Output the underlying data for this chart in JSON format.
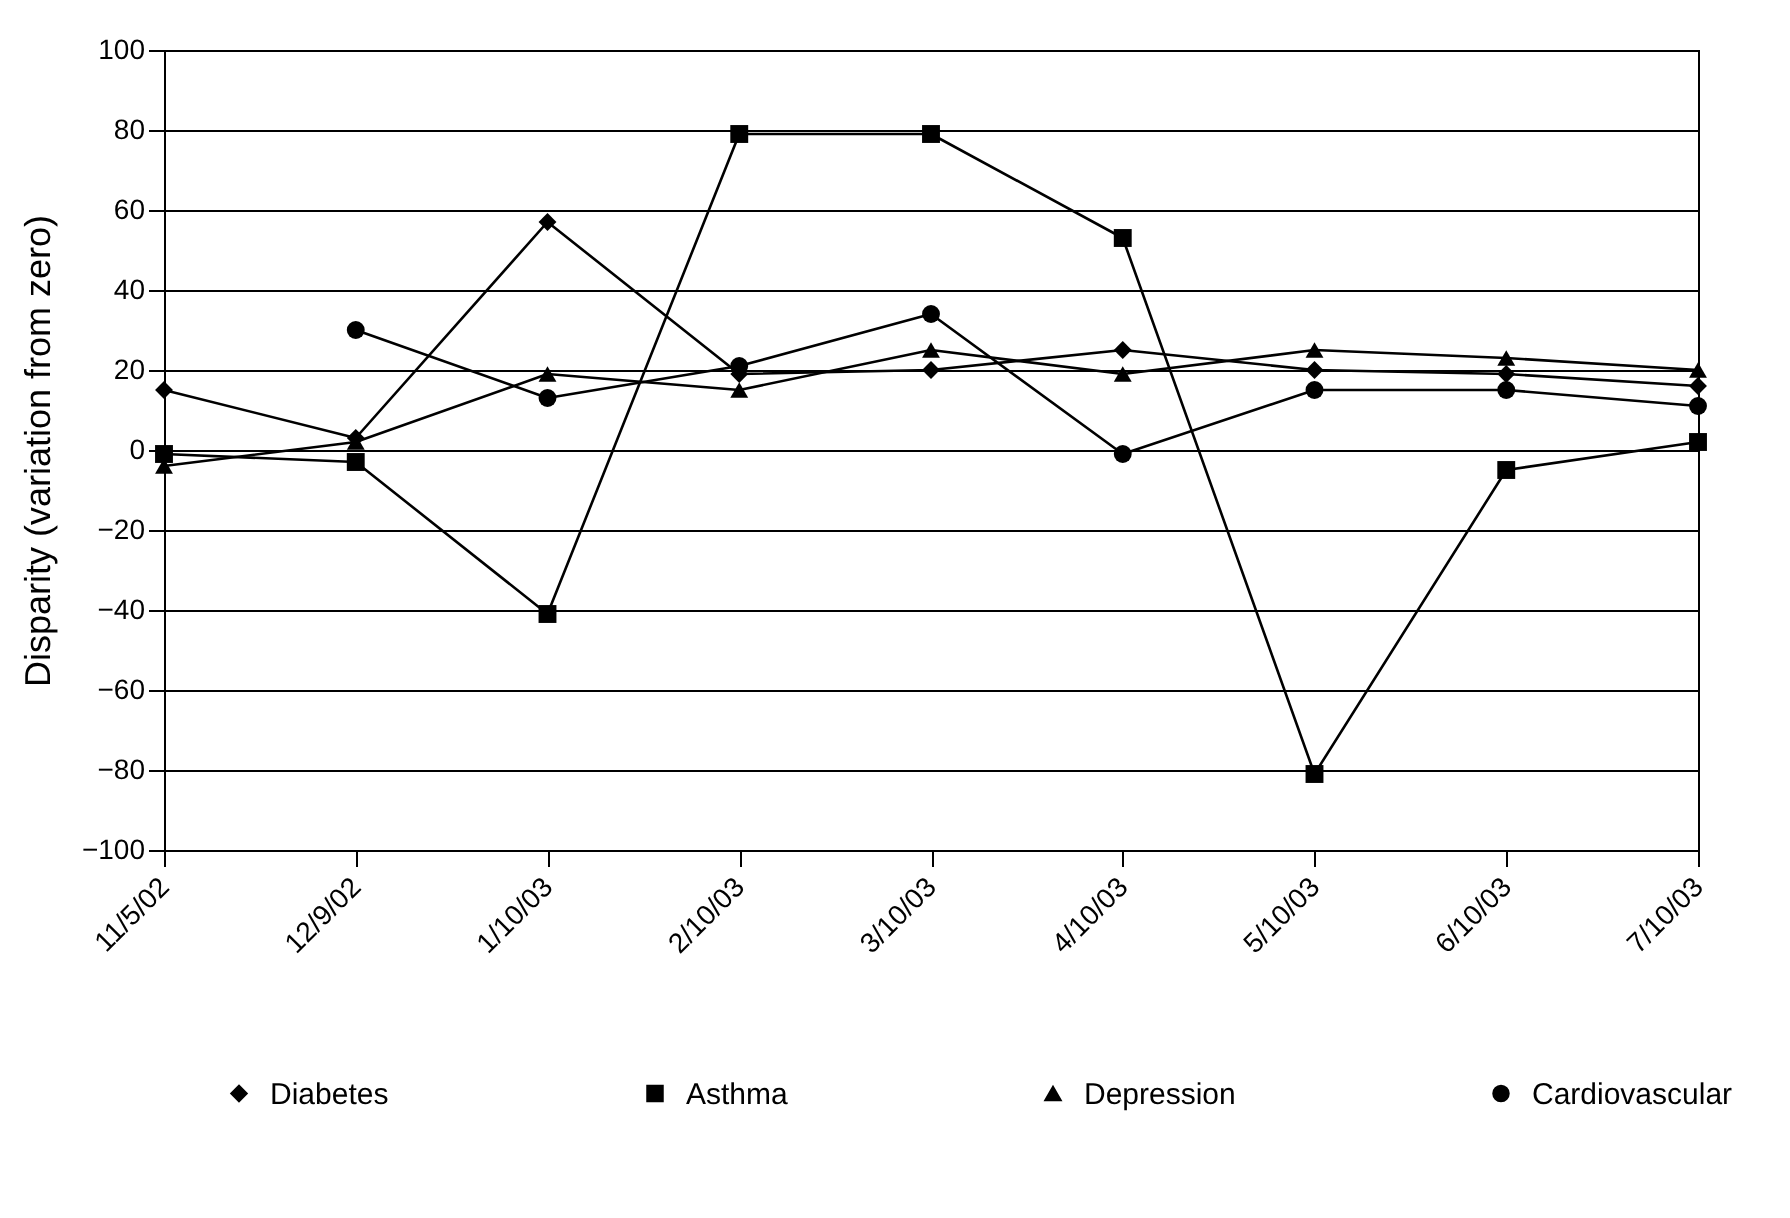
{
  "chart_data": {
    "type": "line",
    "ylabel": "Disparity (variation from zero)",
    "categories": [
      "11/5/02",
      "12/9/02",
      "1/10/03",
      "2/10/03",
      "3/10/03",
      "4/10/03",
      "5/10/03",
      "6/10/03",
      "7/10/03"
    ],
    "series": [
      {
        "name": "Diabetes",
        "color": "#000000",
        "marker": "diamond",
        "values": [
          15,
          3,
          57,
          19,
          20,
          25,
          20,
          19,
          16
        ]
      },
      {
        "name": "Asthma",
        "color": "#000000",
        "marker": "square",
        "values": [
          -1,
          -3,
          -41,
          79,
          79,
          53,
          -81,
          -5,
          2
        ]
      },
      {
        "name": "Depression",
        "color": "#000000",
        "marker": "triangle",
        "values": [
          -4,
          2,
          19,
          15,
          25,
          19,
          25,
          23,
          20
        ]
      },
      {
        "name": "Cardiovascular",
        "color": "#000000",
        "marker": "circle",
        "values": [
          null,
          30,
          13,
          21,
          34,
          -1,
          15,
          15,
          11
        ]
      }
    ],
    "ylim": [
      -100,
      100
    ],
    "yticks": [
      {
        "value": -100,
        "label": "−100"
      },
      {
        "value": -80,
        "label": "−80"
      },
      {
        "value": -60,
        "label": "−60"
      },
      {
        "value": -40,
        "label": "−40"
      },
      {
        "value": -20,
        "label": "−20"
      },
      0,
      20,
      40,
      60,
      80,
      100
    ],
    "grid": "y",
    "legend": "bottom",
    "line_style": "solid"
  }
}
